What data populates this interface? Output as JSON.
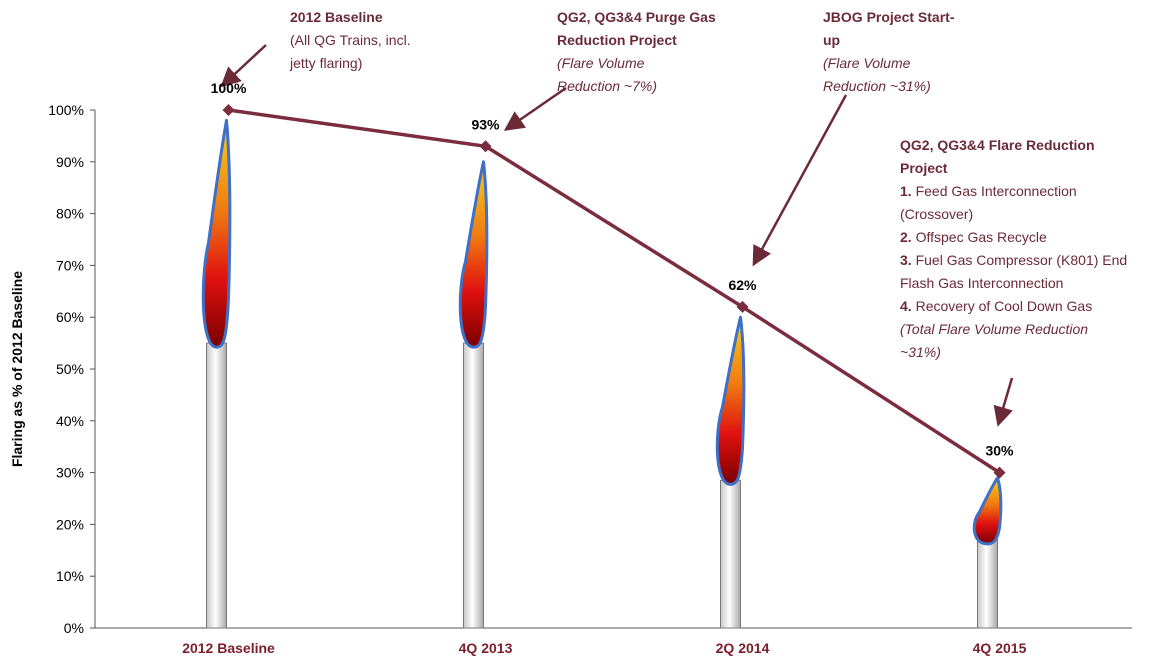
{
  "chart_data": {
    "type": "line",
    "y_axis_label": "Flaring as % of  2012 Baseline",
    "categories": [
      "2012 Baseline",
      "4Q 2013",
      "2Q 2014",
      "4Q 2015"
    ],
    "values": [
      100,
      93,
      62,
      30
    ],
    "value_labels": [
      "100%",
      "93%",
      "62%",
      "30%"
    ],
    "color": "#7b2c3e",
    "stacks": [
      55,
      55,
      28.5,
      17
    ],
    "flames": [
      98,
      90,
      60,
      29
    ],
    "ylim": [
      0,
      100
    ],
    "yticks": [
      {
        "value": 0,
        "label": "0%"
      },
      {
        "value": 10,
        "label": "10%"
      },
      {
        "value": 20,
        "label": "20%"
      },
      {
        "value": 30,
        "label": "30%"
      },
      {
        "value": 40,
        "label": "40%"
      },
      {
        "value": 50,
        "label": "50%"
      },
      {
        "value": 60,
        "label": "60%"
      },
      {
        "value": 70,
        "label": "70%"
      },
      {
        "value": 80,
        "label": "80%"
      },
      {
        "value": 90,
        "label": "90%"
      },
      {
        "value": 100,
        "label": "100%"
      }
    ],
    "annotations": [
      {
        "lines": [
          [
            {
              "text": "2012 Baseline",
              "style": "bold"
            }
          ],
          [
            {
              "text": "(All QG Trains, incl.",
              "style": "plain"
            }
          ],
          [
            {
              "text": "jetty flaring)",
              "style": "plain"
            }
          ]
        ]
      },
      {
        "lines": [
          [
            {
              "text": "QG2, QG3&4 Purge Gas",
              "style": "bold"
            }
          ],
          [
            {
              "text": "Reduction Project",
              "style": "bold"
            }
          ],
          [
            {
              "text": "(Flare Volume",
              "style": "italic"
            }
          ],
          [
            {
              "text": "Reduction ~7%)",
              "style": "italic"
            }
          ]
        ]
      },
      {
        "lines": [
          [
            {
              "text": "JBOG Project Start-",
              "style": "bold"
            }
          ],
          [
            {
              "text": "up",
              "style": "bold"
            }
          ],
          [
            {
              "text": "(Flare Volume",
              "style": "italic"
            }
          ],
          [
            {
              "text": "Reduction ~31%)",
              "style": "italic"
            }
          ]
        ]
      },
      {
        "lines": [
          [
            {
              "text": "QG2, QG3&4 Flare Reduction",
              "style": "bold"
            }
          ],
          [
            {
              "text": "Project",
              "style": "bold"
            }
          ],
          [
            {
              "text": "1.",
              "style": "bold"
            },
            {
              "text": " Feed Gas Interconnection",
              "style": "plain"
            }
          ],
          [
            {
              "text": "(Crossover)",
              "style": "plain"
            }
          ],
          [
            {
              "text": "2.",
              "style": "bold"
            },
            {
              "text": " Offspec Gas Recycle",
              "style": "plain"
            }
          ],
          [
            {
              "text": "3.",
              "style": "bold"
            },
            {
              "text": " Fuel Gas Compressor (K801) End",
              "style": "plain"
            }
          ],
          [
            {
              "text": "Flash Gas Interconnection",
              "style": "plain"
            }
          ],
          [
            {
              "text": "4.",
              "style": "bold"
            },
            {
              "text": " Recovery of Cool Down Gas",
              "style": "plain"
            }
          ],
          [
            {
              "text": "(Total Flare Volume Reduction",
              "style": "italic"
            }
          ],
          [
            {
              "text": "~31%)",
              "style": "italic"
            }
          ]
        ]
      }
    ]
  }
}
